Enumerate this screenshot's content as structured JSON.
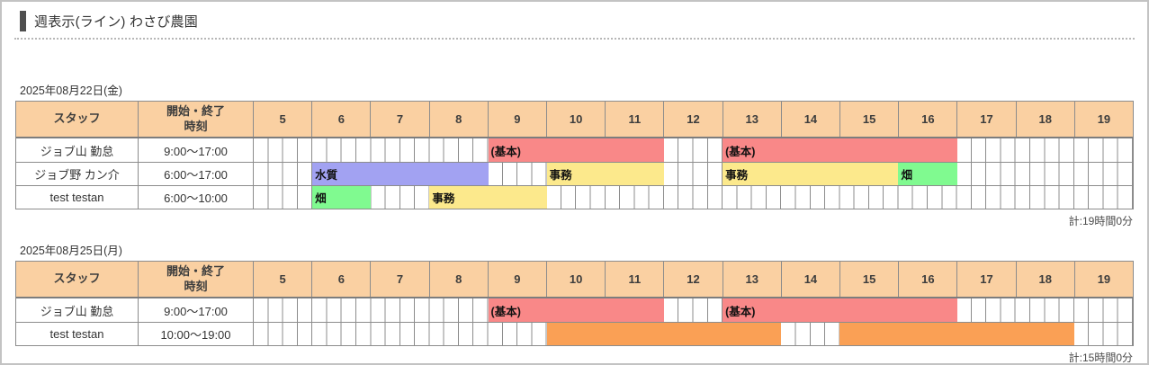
{
  "page": {
    "title": "週表示(ライン) わさび農園"
  },
  "colors": {
    "header_bg": "#fad0a2",
    "grid_border": "#8c8c8c",
    "red": "#f98888",
    "orange": "#faa055",
    "yellow": "#fce98c",
    "green": "#80fa90",
    "purple": "#a2a2f2"
  },
  "table_header": {
    "staff": "スタッフ",
    "time_line1": "開始・終了",
    "time_line2": "時刻"
  },
  "hours": [
    "5",
    "6",
    "7",
    "8",
    "9",
    "10",
    "11",
    "12",
    "13",
    "14",
    "15",
    "16",
    "17",
    "18",
    "19"
  ],
  "axis": {
    "start": 5,
    "end": 20
  },
  "days": [
    {
      "date": "2025年08月22日(金)",
      "total": "計:19時間0分",
      "rows": [
        {
          "staff": "ジョブ山 勤怠",
          "time": "9:00〜17:00",
          "bars": [
            {
              "label": "(基本)",
              "color": "red",
              "start": 9,
              "end": 12
            },
            {
              "label": "(基本)",
              "color": "red",
              "start": 13,
              "end": 17
            }
          ]
        },
        {
          "staff": "ジョブ野 カン介",
          "time": "6:00〜17:00",
          "bars": [
            {
              "label": "水質",
              "color": "purple",
              "start": 6,
              "end": 9
            },
            {
              "label": "事務",
              "color": "yellow",
              "start": 10,
              "end": 12
            },
            {
              "label": "事務",
              "color": "yellow",
              "start": 13,
              "end": 16
            },
            {
              "label": "畑",
              "color": "green",
              "start": 16,
              "end": 17
            }
          ]
        },
        {
          "staff": "test testan",
          "time": "6:00〜10:00",
          "bars": [
            {
              "label": "畑",
              "color": "green",
              "start": 6,
              "end": 7
            },
            {
              "label": "事務",
              "color": "yellow",
              "start": 8,
              "end": 10
            }
          ]
        }
      ]
    },
    {
      "date": "2025年08月25日(月)",
      "total": "計:15時間0分",
      "rows": [
        {
          "staff": "ジョブ山 勤怠",
          "time": "9:00〜17:00",
          "bars": [
            {
              "label": "(基本)",
              "color": "red",
              "start": 9,
              "end": 12
            },
            {
              "label": "(基本)",
              "color": "red",
              "start": 13,
              "end": 17
            }
          ]
        },
        {
          "staff": "test testan",
          "time": "10:00〜19:00",
          "bars": [
            {
              "label": "",
              "color": "orange",
              "start": 10,
              "end": 14
            },
            {
              "label": "",
              "color": "orange",
              "start": 15,
              "end": 19
            }
          ]
        }
      ]
    }
  ]
}
